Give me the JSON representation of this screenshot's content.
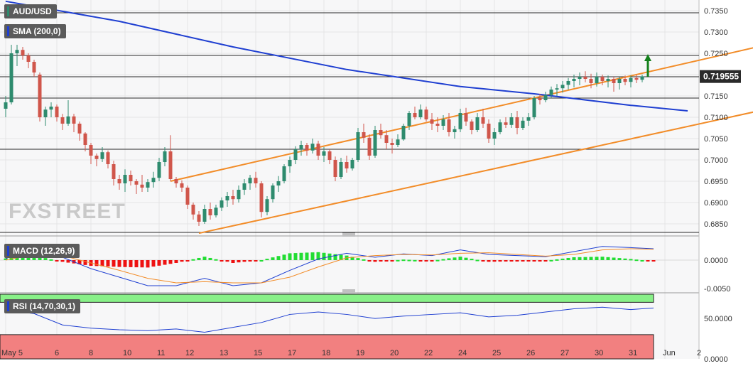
{
  "symbol_label": "AUD/USD",
  "watermark": "FXSTREET",
  "price_panel": {
    "sma_label": "SMA (200,0)",
    "current_price": "0.719555",
    "yaxis_ticks": [
      "0.7350",
      "0.7300",
      "0.7250",
      "0.7200",
      "0.7150",
      "0.7100",
      "0.7050",
      "0.7000",
      "0.6950",
      "0.6900",
      "0.6850"
    ]
  },
  "macd_panel": {
    "label": "MACD (12,26,9)",
    "yaxis_ticks": [
      "0.0000",
      "-0.0050"
    ]
  },
  "rsi_panel": {
    "label": "RSI (14,70,30,1)",
    "yaxis_ticks": [
      "50.0000",
      "0.0000"
    ]
  },
  "xaxis_ticks": [
    "May 5",
    "6",
    "8",
    "10",
    "11",
    "12",
    "13",
    "15",
    "17",
    "18",
    "19",
    "20",
    "22",
    "24",
    "25",
    "26",
    "27",
    "30",
    "31",
    "Jun",
    "2"
  ],
  "colors": {
    "bull": "#2e8b6e",
    "bear": "#d0564b",
    "sma": "#1f3fd1",
    "channel": "#f28c28",
    "macd_pos": "#22dd33",
    "macd_neg": "#ee1111",
    "rsi_overbought_band": "#88f088",
    "rsi_oversold_band": "#f28080",
    "arrow": "#14801c"
  },
  "chart_data": [
    {
      "type": "candlestick",
      "title": "AUD/USD",
      "ylim": [
        0.6825,
        0.7375
      ],
      "xaxis_ticks": [
        "May 5",
        "6",
        "8",
        "10",
        "11",
        "12",
        "13",
        "15",
        "17",
        "18",
        "19",
        "20",
        "22",
        "24",
        "25",
        "26",
        "27",
        "30",
        "31",
        "Jun",
        "2"
      ],
      "ohlc": [
        [
          0.712,
          0.715,
          0.71,
          0.7135
        ],
        [
          0.7135,
          0.727,
          0.713,
          0.725
        ],
        [
          0.725,
          0.727,
          0.722,
          0.7258
        ],
        [
          0.7258,
          0.7265,
          0.7235,
          0.7245
        ],
        [
          0.7245,
          0.725,
          0.7215,
          0.723
        ],
        [
          0.723,
          0.7235,
          0.7195,
          0.7205
        ],
        [
          0.72,
          0.7205,
          0.709,
          0.71
        ],
        [
          0.71,
          0.7125,
          0.708,
          0.7118
        ],
        [
          0.7118,
          0.7135,
          0.71,
          0.7125
        ],
        [
          0.7125,
          0.713,
          0.709,
          0.71
        ],
        [
          0.71,
          0.7108,
          0.707,
          0.7085
        ],
        [
          0.7085,
          0.714,
          0.708,
          0.7102
        ],
        [
          0.7102,
          0.7108,
          0.7065,
          0.7085
        ],
        [
          0.7085,
          0.709,
          0.7045,
          0.7062
        ],
        [
          0.7062,
          0.7065,
          0.702,
          0.7035
        ],
        [
          0.7035,
          0.704,
          0.699,
          0.701
        ],
        [
          0.701,
          0.7015,
          0.6985,
          0.7002
        ],
        [
          0.7002,
          0.703,
          0.6995,
          0.7018
        ],
        [
          0.7018,
          0.7022,
          0.698,
          0.699
        ],
        [
          0.699,
          0.6998,
          0.694,
          0.6955
        ],
        [
          0.6955,
          0.6965,
          0.693,
          0.6945
        ],
        [
          0.6945,
          0.6978,
          0.6925,
          0.6965
        ],
        [
          0.6965,
          0.6975,
          0.694,
          0.695
        ],
        [
          0.695,
          0.6955,
          0.692,
          0.6942
        ],
        [
          0.6942,
          0.6965,
          0.6925,
          0.6935
        ],
        [
          0.6935,
          0.6955,
          0.6925,
          0.6948
        ],
        [
          0.6948,
          0.6972,
          0.6935,
          0.6958
        ],
        [
          0.6958,
          0.7005,
          0.695,
          0.6995
        ],
        [
          0.6995,
          0.703,
          0.6985,
          0.702
        ],
        [
          0.702,
          0.7058,
          0.695,
          0.6955
        ],
        [
          0.6955,
          0.696,
          0.6935,
          0.6945
        ],
        [
          0.6945,
          0.6952,
          0.6925,
          0.6935
        ],
        [
          0.6935,
          0.694,
          0.6885,
          0.6895
        ],
        [
          0.6895,
          0.69,
          0.686,
          0.6872
        ],
        [
          0.6872,
          0.688,
          0.6845,
          0.6855
        ],
        [
          0.6855,
          0.6895,
          0.685,
          0.6885
        ],
        [
          0.6885,
          0.69,
          0.686,
          0.687
        ],
        [
          0.687,
          0.6895,
          0.6865,
          0.6888
        ],
        [
          0.6888,
          0.6912,
          0.688,
          0.6905
        ],
        [
          0.6905,
          0.6925,
          0.689,
          0.6915
        ],
        [
          0.6915,
          0.693,
          0.6895,
          0.6908
        ],
        [
          0.6908,
          0.694,
          0.69,
          0.693
        ],
        [
          0.693,
          0.6955,
          0.6918,
          0.6945
        ],
        [
          0.6945,
          0.6965,
          0.693,
          0.6958
        ],
        [
          0.6958,
          0.6972,
          0.6935,
          0.6945
        ],
        [
          0.6945,
          0.695,
          0.6865,
          0.6878
        ],
        [
          0.6878,
          0.6915,
          0.687,
          0.6908
        ],
        [
          0.6908,
          0.6945,
          0.69,
          0.694
        ],
        [
          0.694,
          0.6962,
          0.6925,
          0.695
        ],
        [
          0.695,
          0.699,
          0.6945,
          0.6985
        ],
        [
          0.6985,
          0.7008,
          0.697,
          0.7
        ],
        [
          0.7,
          0.7032,
          0.699,
          0.7025
        ],
        [
          0.7025,
          0.7045,
          0.701,
          0.7035
        ],
        [
          0.7035,
          0.704,
          0.701,
          0.7022
        ],
        [
          0.7022,
          0.705,
          0.7015,
          0.7038
        ],
        [
          0.7038,
          0.7045,
          0.7,
          0.701
        ],
        [
          0.701,
          0.703,
          0.6995,
          0.702
        ],
        [
          0.702,
          0.7025,
          0.699,
          0.7
        ],
        [
          0.7,
          0.7008,
          0.695,
          0.696
        ],
        [
          0.696,
          0.7005,
          0.6955,
          0.6995
        ],
        [
          0.6995,
          0.701,
          0.697,
          0.698
        ],
        [
          0.698,
          0.7005,
          0.6975,
          0.7
        ],
        [
          0.7,
          0.7075,
          0.6995,
          0.7065
        ],
        [
          0.7065,
          0.7085,
          0.704,
          0.7052
        ],
        [
          0.7052,
          0.706,
          0.7,
          0.701
        ],
        [
          0.701,
          0.708,
          0.7005,
          0.707
        ],
        [
          0.707,
          0.7085,
          0.705,
          0.7058
        ],
        [
          0.7058,
          0.707,
          0.7025,
          0.704
        ],
        [
          0.704,
          0.705,
          0.7015,
          0.7035
        ],
        [
          0.7035,
          0.706,
          0.703,
          0.7048
        ],
        [
          0.7048,
          0.7085,
          0.7045,
          0.708
        ],
        [
          0.708,
          0.7115,
          0.707,
          0.711
        ],
        [
          0.711,
          0.7125,
          0.7095,
          0.71
        ],
        [
          0.71,
          0.713,
          0.7095,
          0.7118
        ],
        [
          0.7118,
          0.7125,
          0.709,
          0.7095
        ],
        [
          0.7095,
          0.711,
          0.707,
          0.7085
        ],
        [
          0.7085,
          0.71,
          0.7065,
          0.708
        ],
        [
          0.708,
          0.7105,
          0.707,
          0.7095
        ],
        [
          0.7095,
          0.711,
          0.7055,
          0.7065
        ],
        [
          0.7065,
          0.708,
          0.705,
          0.7072
        ],
        [
          0.7072,
          0.712,
          0.7065,
          0.711
        ],
        [
          0.711,
          0.7122,
          0.708,
          0.709
        ],
        [
          0.709,
          0.7095,
          0.706,
          0.707
        ],
        [
          0.707,
          0.711,
          0.7065,
          0.71
        ],
        [
          0.71,
          0.712,
          0.7075,
          0.7085
        ],
        [
          0.7085,
          0.7095,
          0.704,
          0.705
        ],
        [
          0.705,
          0.7075,
          0.7035,
          0.7065
        ],
        [
          0.7065,
          0.7095,
          0.706,
          0.7088
        ],
        [
          0.7088,
          0.71,
          0.7075,
          0.7082
        ],
        [
          0.7082,
          0.711,
          0.7075,
          0.71
        ],
        [
          0.71,
          0.7115,
          0.706,
          0.7075
        ],
        [
          0.7075,
          0.71,
          0.707,
          0.7092
        ],
        [
          0.7092,
          0.711,
          0.708,
          0.71
        ],
        [
          0.71,
          0.715,
          0.7095,
          0.7145
        ],
        [
          0.7145,
          0.7155,
          0.713,
          0.714
        ],
        [
          0.714,
          0.716,
          0.7135,
          0.7152
        ],
        [
          0.7152,
          0.7172,
          0.7145,
          0.7165
        ],
        [
          0.7165,
          0.7178,
          0.715,
          0.7168
        ],
        [
          0.7168,
          0.7185,
          0.7158,
          0.7176
        ],
        [
          0.7176,
          0.7192,
          0.7165,
          0.7185
        ],
        [
          0.7185,
          0.72,
          0.717,
          0.719
        ],
        [
          0.719,
          0.7205,
          0.7175,
          0.7195
        ],
        [
          0.7195,
          0.7208,
          0.7182,
          0.719
        ],
        [
          0.719,
          0.7202,
          0.7168,
          0.718
        ],
        [
          0.718,
          0.7205,
          0.7172,
          0.7195
        ],
        [
          0.7195,
          0.72,
          0.7175,
          0.7185
        ],
        [
          0.7185,
          0.7198,
          0.717,
          0.719
        ],
        [
          0.719,
          0.7195,
          0.716,
          0.718
        ],
        [
          0.718,
          0.7195,
          0.7165,
          0.719
        ],
        [
          0.719,
          0.7198,
          0.7175,
          0.7183
        ],
        [
          0.7183,
          0.7198,
          0.717,
          0.7192
        ],
        [
          0.7192,
          0.72,
          0.718,
          0.7188
        ],
        [
          0.7188,
          0.72,
          0.7182,
          0.7196
        ]
      ],
      "series": [
        {
          "name": "SMA (200,0)",
          "x": [
            0,
            20,
            40,
            60,
            80,
            93,
            110,
            120
          ],
          "values": [
            0.7372,
            0.7325,
            0.7265,
            0.7212,
            0.7172,
            0.7155,
            0.7128,
            0.7115
          ]
        }
      ],
      "channel": {
        "upper": [
          [
            29,
            0.695
          ],
          [
            148,
            0.7313
          ]
        ],
        "lower": [
          [
            34,
            0.6828
          ],
          [
            148,
            0.716
          ]
        ]
      },
      "horizontal_levels": [
        0.7345,
        0.7245,
        0.7195,
        0.7145,
        0.7025,
        0.683
      ],
      "current_price": 0.719555
    },
    {
      "type": "macd",
      "title": "MACD (12,26,9)",
      "ylim": [
        -0.0055,
        0.0035
      ],
      "x": [
        0,
        5,
        10,
        15,
        20,
        25,
        30,
        35,
        40,
        45,
        50,
        55,
        60,
        65,
        70,
        75,
        80,
        85,
        90,
        95,
        100,
        105,
        110,
        114
      ],
      "macd": [
        0.0003,
        0.0018,
        0.0005,
        -0.0015,
        -0.003,
        -0.0045,
        -0.0045,
        -0.0032,
        -0.0045,
        -0.004,
        -0.0018,
        0.0002,
        0.0012,
        0.0005,
        0.0011,
        0.0008,
        0.0018,
        0.001,
        0.0008,
        0.0006,
        0.0015,
        0.0024,
        0.0022,
        0.002
      ],
      "signal": [
        0.0,
        0.001,
        0.0008,
        -0.0005,
        -0.0018,
        -0.0032,
        -0.004,
        -0.0038,
        -0.004,
        -0.004,
        -0.003,
        -0.0012,
        0.0004,
        0.0008,
        0.001,
        0.0009,
        0.0012,
        0.0013,
        0.001,
        0.0007,
        0.001,
        0.0018,
        0.002,
        0.0019
      ],
      "histogram": [
        0.0003,
        0.0008,
        -0.0003,
        -0.001,
        -0.0012,
        -0.0013,
        -0.0005,
        0.0006,
        -0.0005,
        0.0,
        0.0012,
        0.0014,
        0.0008,
        -0.0003,
        0.0001,
        -0.0001,
        0.0006,
        -0.0003,
        -0.0002,
        -0.0001,
        0.0005,
        0.0006,
        0.0002,
        -0.0002
      ]
    },
    {
      "type": "line",
      "title": "RSI (14,70,30,1)",
      "ylim": [
        0,
        80
      ],
      "overbought": 70,
      "oversold": 30,
      "x": [
        0,
        5,
        10,
        15,
        20,
        25,
        30,
        35,
        40,
        45,
        50,
        55,
        60,
        65,
        70,
        75,
        80,
        85,
        90,
        95,
        100,
        105,
        110,
        114
      ],
      "series": [
        {
          "name": "RSI",
          "values": [
            60,
            56,
            42,
            38,
            36,
            35,
            37,
            33,
            39,
            45,
            55,
            58,
            55,
            50,
            53,
            55,
            57,
            52,
            54,
            58,
            62,
            64,
            61,
            63
          ]
        }
      ]
    }
  ]
}
